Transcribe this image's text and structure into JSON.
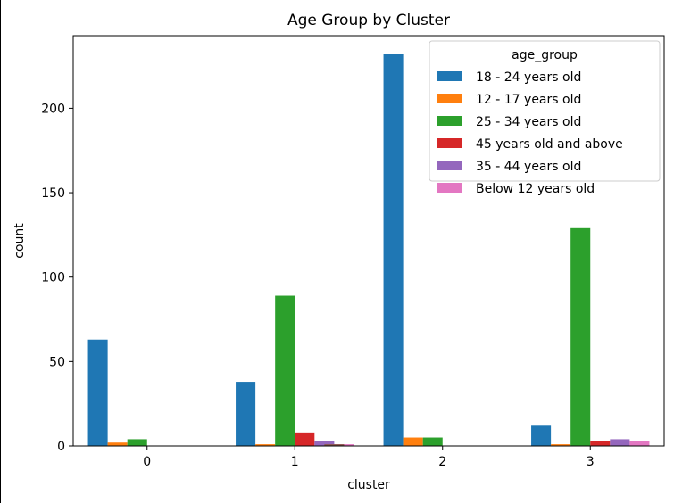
{
  "chart_data": {
    "type": "bar",
    "title": "Age Group by Cluster",
    "xlabel": "cluster",
    "ylabel": "count",
    "categories": [
      "0",
      "1",
      "2",
      "3"
    ],
    "yticks": [
      0,
      50,
      100,
      150,
      200
    ],
    "ylim": [
      0,
      243
    ],
    "legend": {
      "title": "age_group",
      "placement": "upper right"
    },
    "series": [
      {
        "name": "18 - 24 years old",
        "color": "#1f77b4",
        "values": [
          63,
          38,
          232,
          12
        ]
      },
      {
        "name": "12 - 17 years old",
        "color": "#ff7f0e",
        "values": [
          2,
          1,
          5,
          1
        ]
      },
      {
        "name": "25 - 34 years old",
        "color": "#2ca02c",
        "values": [
          4,
          89,
          5,
          129
        ]
      },
      {
        "name": "45 years old and above",
        "color": "#d62728",
        "values": [
          0,
          8,
          0,
          3
        ]
      },
      {
        "name": "35 - 44 years old",
        "color": "#9467bd",
        "values": [
          0,
          3,
          0,
          4
        ]
      },
      {
        "name": "Below 12 years old",
        "color": "#e377c2",
        "values": [
          0,
          1,
          0,
          3
        ]
      }
    ],
    "extra_bars": [
      {
        "category": "1",
        "color": "#8c564b",
        "value": 1
      }
    ]
  }
}
